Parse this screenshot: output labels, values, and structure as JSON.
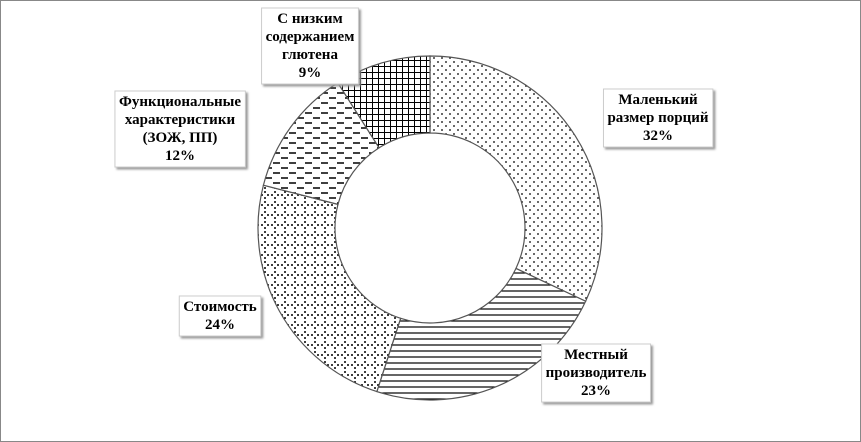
{
  "chart_data": {
    "type": "donut",
    "categories": [
      "Маленький\nразмер порций",
      "Местный\nпроизводитель",
      "Стоимость",
      "Функциональные\nхарактеристики\n(ЗОЖ, ПП)",
      "С низким\nсодержанием\nглютена"
    ],
    "values": [
      32,
      23,
      24,
      12,
      9
    ],
    "value_labels": [
      "32%",
      "23%",
      "24%",
      "12%",
      "9%"
    ]
  }
}
